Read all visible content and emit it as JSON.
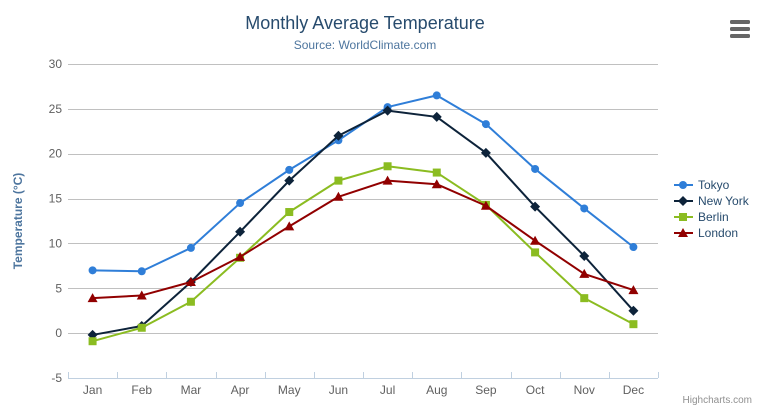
{
  "export_menu": {
    "icon": "hamburger-icon"
  },
  "credits": {
    "label": "Highcharts.com"
  },
  "chart_data": {
    "type": "line",
    "title": "Monthly Average Temperature",
    "subtitle": "Source: WorldClimate.com",
    "xlabel": "",
    "ylabel": "Temperature (°C)",
    "categories": [
      "Jan",
      "Feb",
      "Mar",
      "Apr",
      "May",
      "Jun",
      "Jul",
      "Aug",
      "Sep",
      "Oct",
      "Nov",
      "Dec"
    ],
    "series": [
      {
        "name": "Tokyo",
        "color": "#2f7ed8",
        "marker": "circle",
        "values": [
          7.0,
          6.9,
          9.5,
          14.5,
          18.2,
          21.5,
          25.2,
          26.5,
          23.3,
          18.3,
          13.9,
          9.6
        ]
      },
      {
        "name": "New York",
        "color": "#0d233a",
        "marker": "diamond",
        "values": [
          -0.2,
          0.8,
          5.7,
          11.3,
          17.0,
          22.0,
          24.8,
          24.1,
          20.1,
          14.1,
          8.6,
          2.5
        ]
      },
      {
        "name": "Berlin",
        "color": "#8bbc21",
        "marker": "square",
        "values": [
          -0.9,
          0.6,
          3.5,
          8.4,
          13.5,
          17.0,
          18.6,
          17.9,
          14.3,
          9.0,
          3.9,
          1.0
        ]
      },
      {
        "name": "London",
        "color": "#910000",
        "marker": "triangle",
        "values": [
          3.9,
          4.2,
          5.7,
          8.5,
          11.9,
          15.2,
          17.0,
          16.6,
          14.2,
          10.3,
          6.6,
          4.8
        ]
      }
    ],
    "ylim": [
      -5,
      30
    ],
    "yticks": [
      -5,
      0,
      5,
      10,
      15,
      20,
      25,
      30
    ],
    "grid": true,
    "legend_position": "right",
    "axis_colors": {
      "grid_line": "#c0c0c0",
      "axis_line": "#c0d0e0",
      "labels": "#606060"
    }
  }
}
